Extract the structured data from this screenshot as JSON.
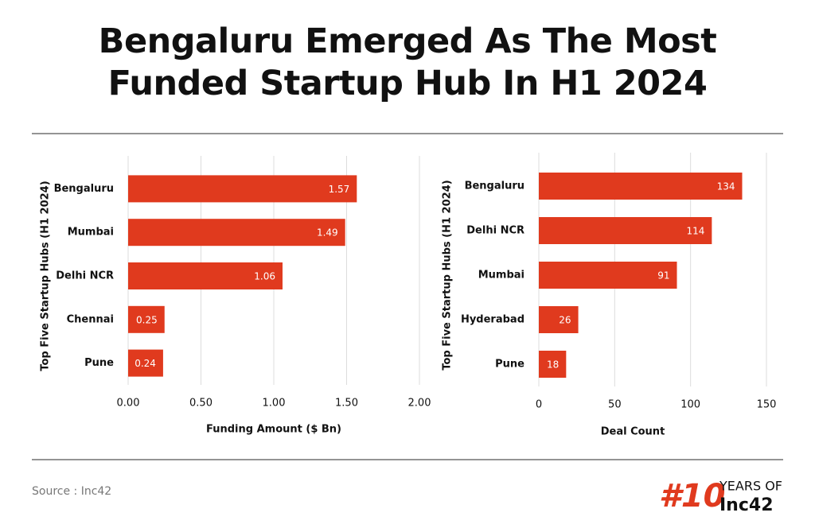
{
  "title": "Bengaluru Emerged As The Most Funded Startup Hub In H1 2024",
  "source": "Source : Inc42",
  "logo": {
    "number": "#10",
    "tagline": "YEARS OF",
    "brand": "Inc42"
  },
  "chart_data": [
    {
      "type": "bar",
      "orientation": "horizontal",
      "color": "#e03a1e",
      "grid": true,
      "ylabel": "Top Five Startup Hubs (H1 2024)",
      "xlabel": "Funding Amount ($ Bn)",
      "categories": [
        "Bengaluru",
        "Mumbai",
        "Delhi NCR",
        "Chennai",
        "Pune"
      ],
      "values": [
        1.57,
        1.49,
        1.06,
        0.25,
        0.24
      ],
      "xlim": [
        0,
        2
      ],
      "xticks": [
        {
          "value": 0,
          "label": "0.00"
        },
        {
          "value": 0.5,
          "label": "0.50"
        },
        {
          "value": 1,
          "label": "1.00"
        },
        {
          "value": 1.5,
          "label": "1.50"
        },
        {
          "value": 2,
          "label": "2.00"
        }
      ]
    },
    {
      "type": "bar",
      "orientation": "horizontal",
      "color": "#e03a1e",
      "grid": true,
      "ylabel": "Top Five Startup Hubs (H1 2024)",
      "xlabel": "Deal Count",
      "categories": [
        "Bengaluru",
        "Delhi NCR",
        "Mumbai",
        "Hyderabad",
        "Pune"
      ],
      "values": [
        134,
        114,
        91,
        26,
        18
      ],
      "xlim": [
        0,
        150
      ],
      "xticks": [
        0,
        50,
        100,
        150
      ]
    }
  ]
}
